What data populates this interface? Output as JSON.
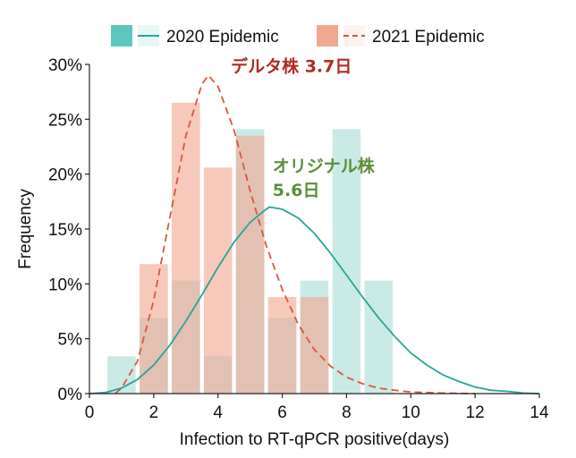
{
  "chart_data": {
    "type": "bar",
    "xlabel": "Infection to RT-qPCR positive(days)",
    "ylabel": "Frequency",
    "xlim": [
      0,
      14
    ],
    "ylim": [
      0,
      30
    ],
    "xticks": [
      0,
      2,
      4,
      6,
      8,
      10,
      12,
      14
    ],
    "yticks": [
      0,
      5,
      10,
      15,
      20,
      25,
      30
    ],
    "ytick_suffix": "%",
    "grid": false,
    "legend_position": "top",
    "bin_width": 1,
    "series": [
      {
        "name": "2020 Epidemic",
        "kind": "histogram",
        "color": "#9fd8d2",
        "bars": [
          {
            "x": 1,
            "value": 3.4
          },
          {
            "x": 2,
            "value": 6.9
          },
          {
            "x": 3,
            "value": 10.3
          },
          {
            "x": 4,
            "value": 3.4
          },
          {
            "x": 5,
            "value": 24.1
          },
          {
            "x": 6,
            "value": 6.9
          },
          {
            "x": 7,
            "value": 10.3
          },
          {
            "x": 8,
            "value": 24.1
          },
          {
            "x": 9,
            "value": 10.3
          }
        ]
      },
      {
        "name": "2021 Epidemic",
        "kind": "histogram",
        "color": "#f0a891",
        "bars": [
          {
            "x": 2,
            "value": 11.8
          },
          {
            "x": 3,
            "value": 26.5
          },
          {
            "x": 4,
            "value": 20.6
          },
          {
            "x": 5,
            "value": 23.5
          },
          {
            "x": 6,
            "value": 8.8
          },
          {
            "x": 7,
            "value": 8.8
          }
        ]
      }
    ],
    "curves": [
      {
        "name": "2020 Epidemic",
        "color": "#2aa597",
        "style": "solid",
        "points": [
          [
            0,
            0.0
          ],
          [
            0.5,
            0.1
          ],
          [
            1,
            0.5
          ],
          [
            1.5,
            1.3
          ],
          [
            2,
            2.6
          ],
          [
            2.5,
            4.4
          ],
          [
            3,
            6.6
          ],
          [
            3.5,
            9.0
          ],
          [
            4,
            11.5
          ],
          [
            4.5,
            13.8
          ],
          [
            5,
            15.6
          ],
          [
            5.5,
            16.8
          ],
          [
            5.6,
            17.0
          ],
          [
            6,
            16.8
          ],
          [
            6.5,
            16.0
          ],
          [
            7,
            14.6
          ],
          [
            7.5,
            12.8
          ],
          [
            8,
            10.8
          ],
          [
            8.5,
            8.8
          ],
          [
            9,
            6.9
          ],
          [
            9.5,
            5.2
          ],
          [
            10,
            3.7
          ],
          [
            10.5,
            2.6
          ],
          [
            11,
            1.7
          ],
          [
            11.5,
            1.1
          ],
          [
            12,
            0.6
          ],
          [
            12.5,
            0.3
          ],
          [
            13,
            0.2
          ],
          [
            13.5,
            0.05
          ],
          [
            14,
            0.0
          ]
        ]
      },
      {
        "name": "2021 Epidemic",
        "color": "#d9573a",
        "style": "dashed",
        "points": [
          [
            0.8,
            0.0
          ],
          [
            1,
            0.5
          ],
          [
            1.5,
            3.0
          ],
          [
            2,
            8.5
          ],
          [
            2.5,
            16.0
          ],
          [
            3,
            23.5
          ],
          [
            3.5,
            28.2
          ],
          [
            3.7,
            29.0
          ],
          [
            4,
            28.0
          ],
          [
            4.5,
            24.0
          ],
          [
            5,
            18.5
          ],
          [
            5.5,
            13.5
          ],
          [
            6,
            9.5
          ],
          [
            6.5,
            6.3
          ],
          [
            7,
            4.0
          ],
          [
            7.5,
            2.5
          ],
          [
            8,
            1.5
          ],
          [
            8.5,
            0.9
          ],
          [
            9,
            0.5
          ],
          [
            9.5,
            0.3
          ],
          [
            10,
            0.15
          ],
          [
            11,
            0.05
          ],
          [
            12,
            0.0
          ]
        ]
      }
    ],
    "annotations": [
      {
        "text": "デルタ株 3.7日",
        "x": 4.4,
        "y": 29.3,
        "color": "#b12a22"
      },
      {
        "text": "オリジナル株",
        "x": 5.7,
        "y": 20.2,
        "color": "#5a8f3a"
      },
      {
        "text": "5.6日",
        "x": 5.7,
        "y": 18.0,
        "color": "#5a8f3a"
      }
    ],
    "legend": [
      {
        "label": "2020 Epidemic",
        "swatch_color": "#5cc7c1",
        "line_color": "#2aa597",
        "line_style": "solid"
      },
      {
        "label": "2021 Epidemic",
        "swatch_color": "#f0a891",
        "line_color": "#d9573a",
        "line_style": "dashed"
      }
    ]
  }
}
